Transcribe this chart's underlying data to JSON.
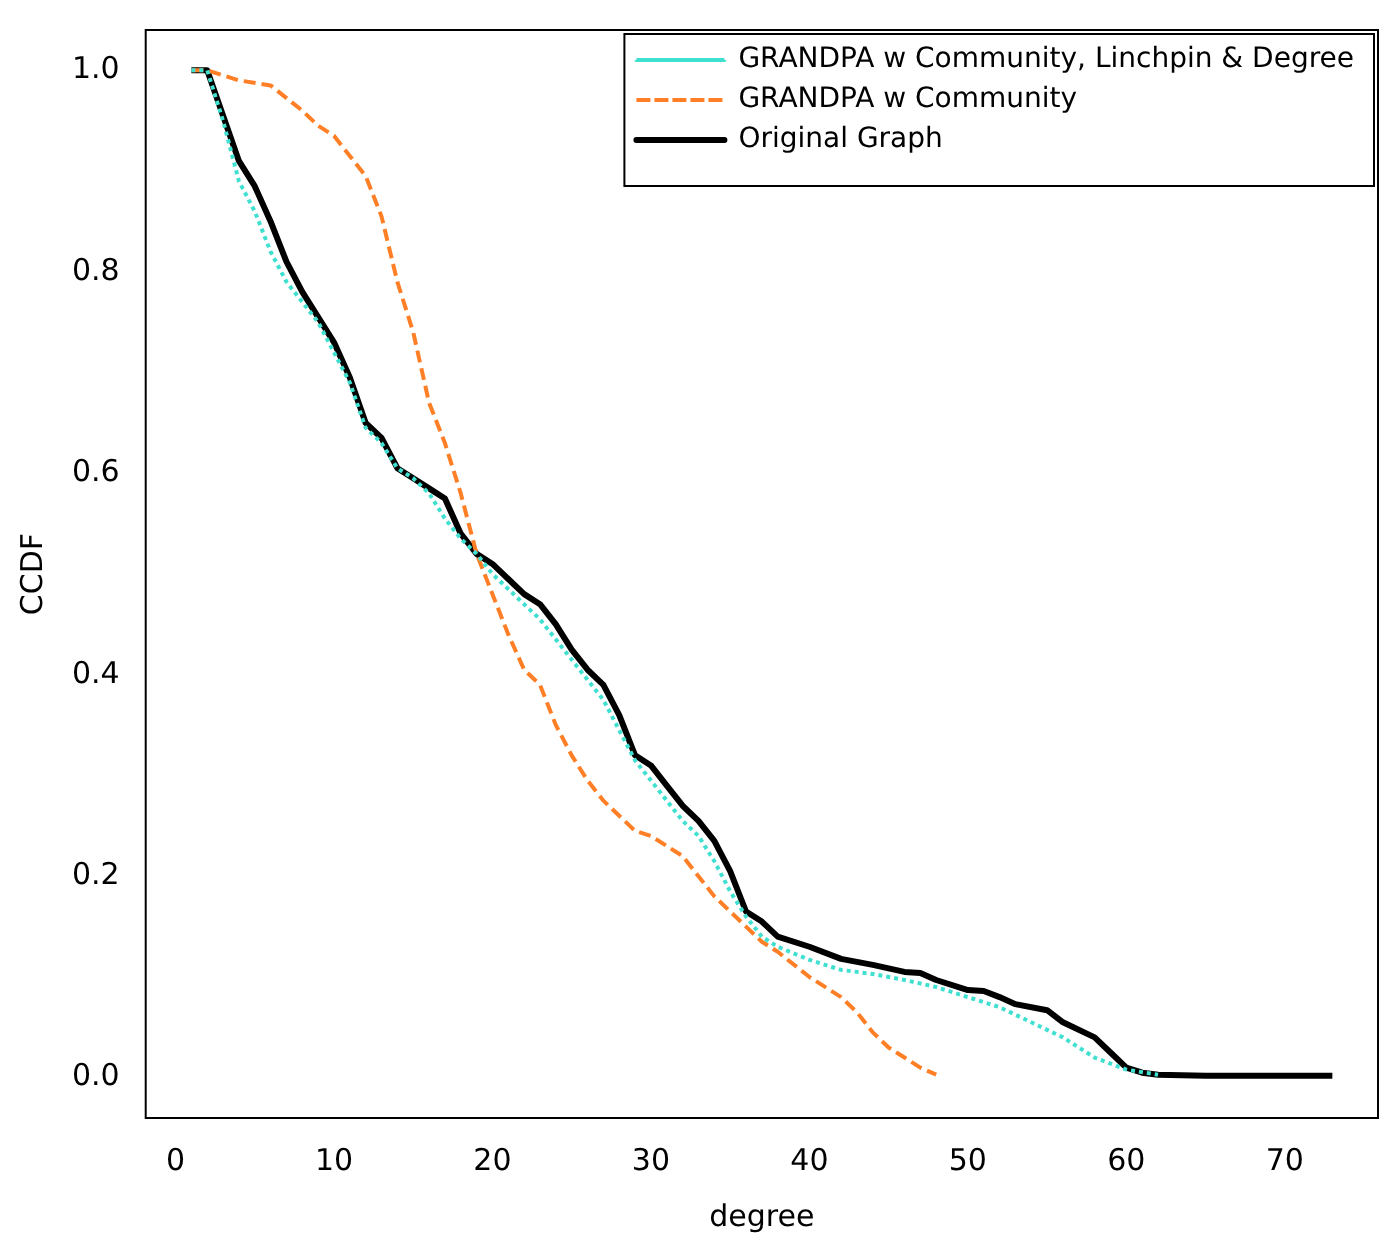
{
  "chart_data": {
    "type": "line",
    "xlabel": "degree",
    "ylabel": "CCDF",
    "xlim": [
      -1.88,
      75.88
    ],
    "ylim": [
      -0.04,
      1.04
    ],
    "xticks": [
      0,
      10,
      20,
      30,
      40,
      50,
      60,
      70
    ],
    "yticks": [
      {
        "value": 0,
        "label": "0.0"
      },
      {
        "value": 0.2,
        "label": "0.2"
      },
      {
        "value": 0.4,
        "label": "0.4"
      },
      {
        "value": 0.6,
        "label": "0.6"
      },
      {
        "value": 0.8,
        "label": "0.8"
      },
      {
        "value": 1,
        "label": "1.0"
      }
    ],
    "grid": false,
    "legend": "top right",
    "marker": "none",
    "series": [
      {
        "name": "Original Graph",
        "color": "#000000",
        "line_style": "solid",
        "x": [
          1,
          2,
          4,
          5,
          6,
          7,
          8,
          9,
          10,
          11,
          12,
          13,
          14,
          15,
          16,
          17,
          18,
          19,
          20,
          21,
          22,
          23,
          24,
          25,
          26,
          27,
          28,
          29,
          30,
          31,
          32,
          33,
          34,
          35,
          36,
          37,
          38,
          40,
          42,
          44,
          46,
          47,
          48,
          50,
          51,
          52,
          53,
          55,
          56,
          58,
          59,
          60,
          61,
          62,
          65,
          73
        ],
        "values": [
          1,
          1,
          0.91,
          0.885,
          0.85,
          0.81,
          0.78,
          0.755,
          0.73,
          0.695,
          0.65,
          0.635,
          0.605,
          0.595,
          0.585,
          0.575,
          0.54,
          0.52,
          0.51,
          0.495,
          0.48,
          0.47,
          0.45,
          0.425,
          0.405,
          0.39,
          0.36,
          0.32,
          0.31,
          0.29,
          0.27,
          0.255,
          0.235,
          0.205,
          0.165,
          0.155,
          0.14,
          0.13,
          0.118,
          0.112,
          0.105,
          0.104,
          0.097,
          0.087,
          0.086,
          0.08,
          0.073,
          0.067,
          0.055,
          0.04,
          0.025,
          0.01,
          0.005,
          0.003,
          0.002,
          0.002
        ]
      },
      {
        "name": "GRANDPA w Community",
        "color": "#ff7f27",
        "line_style": "dashed",
        "x": [
          1,
          2,
          4,
          6,
          8,
          9,
          10,
          11,
          12,
          13,
          14,
          15,
          16,
          17,
          18,
          19,
          20,
          21,
          22,
          23,
          24,
          25,
          26,
          27,
          28,
          29,
          30,
          31,
          32,
          33,
          34,
          35,
          36,
          37,
          38,
          40,
          42,
          43,
          44,
          45,
          46,
          47,
          48
        ],
        "values": [
          1,
          1,
          0.99,
          0.985,
          0.96,
          0.945,
          0.935,
          0.915,
          0.895,
          0.855,
          0.79,
          0.74,
          0.67,
          0.63,
          0.58,
          0.52,
          0.48,
          0.44,
          0.405,
          0.39,
          0.35,
          0.32,
          0.295,
          0.275,
          0.26,
          0.245,
          0.24,
          0.23,
          0.22,
          0.2,
          0.18,
          0.165,
          0.15,
          0.135,
          0.125,
          0.1,
          0.08,
          0.065,
          0.045,
          0.03,
          0.02,
          0.01,
          0.003
        ]
      },
      {
        "name": "GRANDPA w Community, Linchpin & Degree",
        "color": "#40e0d0",
        "line_style": "dotted",
        "x": [
          1,
          2,
          3,
          4,
          5,
          6,
          7,
          8,
          9,
          10,
          11,
          12,
          13,
          14,
          15,
          16,
          17,
          18,
          19,
          20,
          21,
          22,
          23,
          24,
          25,
          26,
          27,
          28,
          29,
          30,
          31,
          32,
          33,
          34,
          35,
          36,
          37,
          38,
          40,
          42,
          44,
          46,
          48,
          50,
          52,
          54,
          56,
          58,
          60,
          62
        ],
        "values": [
          1,
          1,
          0.95,
          0.89,
          0.86,
          0.82,
          0.79,
          0.77,
          0.75,
          0.72,
          0.69,
          0.645,
          0.63,
          0.605,
          0.595,
          0.58,
          0.555,
          0.535,
          0.52,
          0.5,
          0.485,
          0.47,
          0.455,
          0.435,
          0.415,
          0.395,
          0.375,
          0.345,
          0.315,
          0.295,
          0.275,
          0.255,
          0.24,
          0.215,
          0.185,
          0.16,
          0.14,
          0.13,
          0.117,
          0.107,
          0.103,
          0.097,
          0.09,
          0.08,
          0.07,
          0.055,
          0.04,
          0.02,
          0.008,
          0.003
        ]
      }
    ]
  }
}
